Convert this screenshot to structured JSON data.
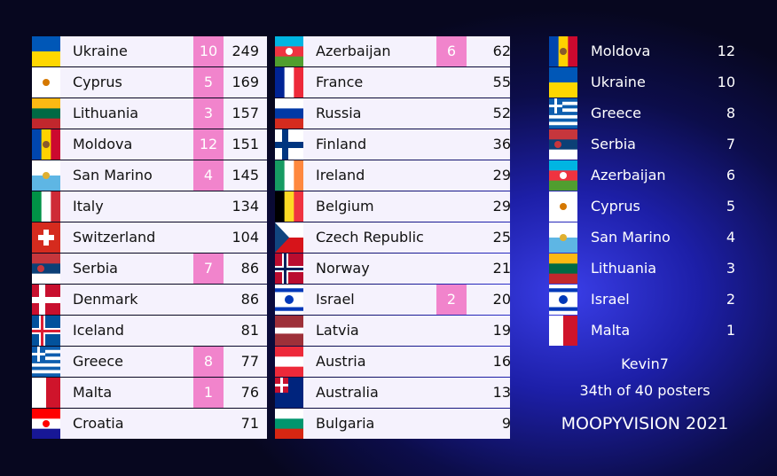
{
  "scoreboard": {
    "columns": [
      {
        "rows": [
          {
            "country": "Ukraine",
            "points": 10,
            "total": 249
          },
          {
            "country": "Cyprus",
            "points": 5,
            "total": 169
          },
          {
            "country": "Lithuania",
            "points": 3,
            "total": 157
          },
          {
            "country": "Moldova",
            "points": 12,
            "total": 151
          },
          {
            "country": "San Marino",
            "points": 4,
            "total": 145
          },
          {
            "country": "Italy",
            "points": null,
            "total": 134
          },
          {
            "country": "Switzerland",
            "points": null,
            "total": 104
          },
          {
            "country": "Serbia",
            "points": 7,
            "total": 86
          },
          {
            "country": "Denmark",
            "points": null,
            "total": 86
          },
          {
            "country": "Iceland",
            "points": null,
            "total": 81
          },
          {
            "country": "Greece",
            "points": 8,
            "total": 77
          },
          {
            "country": "Malta",
            "points": 1,
            "total": 76
          },
          {
            "country": "Croatia",
            "points": null,
            "total": 71
          }
        ]
      },
      {
        "rows": [
          {
            "country": "Azerbaijan",
            "points": 6,
            "total": 62
          },
          {
            "country": "France",
            "points": null,
            "total": 55
          },
          {
            "country": "Russia",
            "points": null,
            "total": 52
          },
          {
            "country": "Finland",
            "points": null,
            "total": 36
          },
          {
            "country": "Ireland",
            "points": null,
            "total": 29
          },
          {
            "country": "Belgium",
            "points": null,
            "total": 29
          },
          {
            "country": "Czech Republic",
            "points": null,
            "total": 25
          },
          {
            "country": "Norway",
            "points": null,
            "total": 21
          },
          {
            "country": "Israel",
            "points": 2,
            "total": 20
          },
          {
            "country": "Latvia",
            "points": null,
            "total": 19
          },
          {
            "country": "Austria",
            "points": null,
            "total": 16
          },
          {
            "country": "Australia",
            "points": null,
            "total": 13
          },
          {
            "country": "Bulgaria",
            "points": null,
            "total": 9
          }
        ]
      }
    ]
  },
  "received": {
    "rows": [
      {
        "country": "Moldova",
        "points": 12
      },
      {
        "country": "Ukraine",
        "points": 10
      },
      {
        "country": "Greece",
        "points": 8
      },
      {
        "country": "Serbia",
        "points": 7
      },
      {
        "country": "Azerbaijan",
        "points": 6
      },
      {
        "country": "Cyprus",
        "points": 5
      },
      {
        "country": "San Marino",
        "points": 4
      },
      {
        "country": "Lithuania",
        "points": 3
      },
      {
        "country": "Israel",
        "points": 2
      },
      {
        "country": "Malta",
        "points": 1
      }
    ]
  },
  "footer": {
    "user": "Kevin7",
    "rank": "34th of 40 posters",
    "title": "MOOPYVISION 2021"
  }
}
